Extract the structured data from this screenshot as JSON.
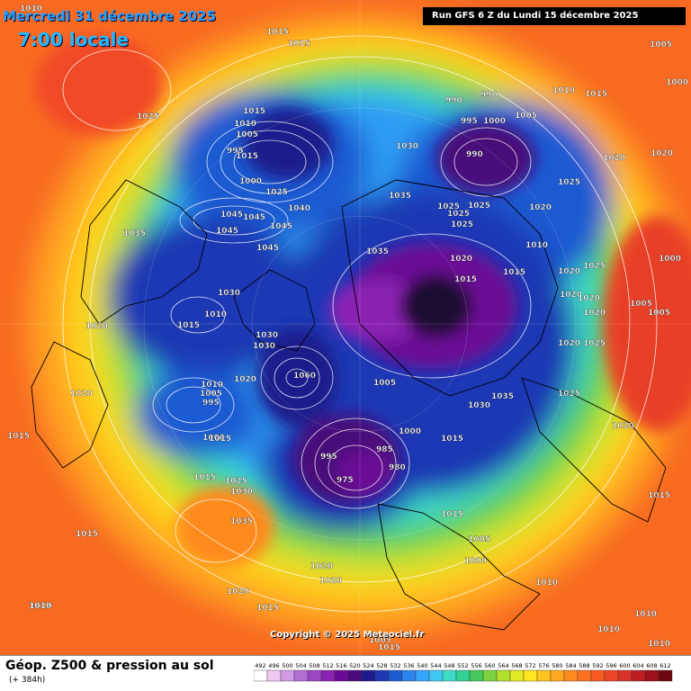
{
  "header": {
    "date": "Mercredi 31 décembre 2025",
    "time": "7:00 locale",
    "run": "Run GFS 6 Z du Lundi 15 décembre 2025"
  },
  "footer": {
    "title": "Géop. Z500 & pression au sol",
    "subtitle": "(+ 384h)",
    "copyright": "Copyright © 2025 Meteociel.fr"
  },
  "legend": {
    "values": [
      "492",
      "496",
      "500",
      "504",
      "508",
      "512",
      "516",
      "520",
      "524",
      "528",
      "532",
      "536",
      "540",
      "544",
      "548",
      "552",
      "556",
      "560",
      "564",
      "568",
      "572",
      "576",
      "580",
      "584",
      "588",
      "592",
      "596",
      "600",
      "604",
      "608",
      "612"
    ],
    "colors": [
      "#ffffff",
      "#f0c8f0",
      "#d29be6",
      "#b26fd4",
      "#9a47c4",
      "#8a22b4",
      "#6a0a94",
      "#4a0a7a",
      "#1e1a8c",
      "#1f39b4",
      "#1d5ad2",
      "#2d84ee",
      "#34a6ff",
      "#3ec8f2",
      "#3edcc6",
      "#34d094",
      "#46c85c",
      "#7cd23c",
      "#b0e02c",
      "#e2ea26",
      "#ffe61e",
      "#ffc41e",
      "#ffa81e",
      "#ff8a1e",
      "#ff701e",
      "#f85a22",
      "#ec4628",
      "#d8322a",
      "#bc1e22",
      "#9c101a",
      "#6e0810"
    ]
  },
  "pressure_labels": [
    {
      "text": "1010"
    },
    {
      "text": "1015"
    },
    {
      "text": "1015"
    },
    {
      "text": "1025"
    },
    {
      "text": "1015"
    },
    {
      "text": "1010"
    },
    {
      "text": "1005"
    },
    {
      "text": "995"
    },
    {
      "text": "1015"
    },
    {
      "text": "1000"
    },
    {
      "text": "1025"
    },
    {
      "text": "1040"
    },
    {
      "text": "1045"
    },
    {
      "text": "1045"
    },
    {
      "text": "1045"
    },
    {
      "text": "1045"
    },
    {
      "text": "1035"
    },
    {
      "text": "1045"
    },
    {
      "text": "1030"
    },
    {
      "text": "1010"
    },
    {
      "text": "1015"
    },
    {
      "text": "1030"
    },
    {
      "text": "1030"
    },
    {
      "text": "1010"
    },
    {
      "text": "1005"
    },
    {
      "text": "995"
    },
    {
      "text": "1020"
    },
    {
      "text": "1020"
    },
    {
      "text": "1000"
    },
    {
      "text": "1015"
    },
    {
      "text": "1025"
    },
    {
      "text": "1030"
    },
    {
      "text": "1035"
    },
    {
      "text": "1015"
    },
    {
      "text": "1020"
    },
    {
      "text": "1020"
    },
    {
      "text": "1020"
    },
    {
      "text": "1015"
    },
    {
      "text": "1010"
    },
    {
      "text": "1060"
    },
    {
      "text": "1005"
    },
    {
      "text": "1000"
    },
    {
      "text": "995"
    },
    {
      "text": "985"
    },
    {
      "text": "980"
    },
    {
      "text": "975"
    },
    {
      "text": "1015"
    },
    {
      "text": "1015"
    },
    {
      "text": "1005"
    },
    {
      "text": "1000"
    },
    {
      "text": "1010"
    },
    {
      "text": "1030"
    },
    {
      "text": "1035"
    },
    {
      "text": "1030"
    },
    {
      "text": "1035"
    },
    {
      "text": "1035"
    },
    {
      "text": "1025"
    },
    {
      "text": "1025"
    },
    {
      "text": "1025"
    },
    {
      "text": "990"
    },
    {
      "text": "990"
    },
    {
      "text": "995"
    },
    {
      "text": "1000"
    },
    {
      "text": "1005"
    },
    {
      "text": "1010"
    },
    {
      "text": "1015"
    },
    {
      "text": "990"
    },
    {
      "text": "1020"
    },
    {
      "text": "1015"
    },
    {
      "text": "1010"
    },
    {
      "text": "1020"
    },
    {
      "text": "1025"
    },
    {
      "text": "1025"
    },
    {
      "text": "1020"
    },
    {
      "text": "1020"
    },
    {
      "text": "1025"
    },
    {
      "text": "1020"
    },
    {
      "text": "1020"
    },
    {
      "text": "1020"
    },
    {
      "text": "1025"
    },
    {
      "text": "1020"
    },
    {
      "text": "1005"
    },
    {
      "text": "1005"
    },
    {
      "text": "1020"
    },
    {
      "text": "1025"
    },
    {
      "text": "1020"
    },
    {
      "text": "1000"
    },
    {
      "text": "1005"
    },
    {
      "text": "1000"
    },
    {
      "text": "1015"
    },
    {
      "text": "1010"
    },
    {
      "text": "1010"
    },
    {
      "text": "1010"
    },
    {
      "text": "1005"
    },
    {
      "text": "1015"
    },
    {
      "text": "1015"
    },
    {
      "text": "1015"
    },
    {
      "text": "1010"
    },
    {
      "text": "1020"
    },
    {
      "text": "1015"
    }
  ]
}
